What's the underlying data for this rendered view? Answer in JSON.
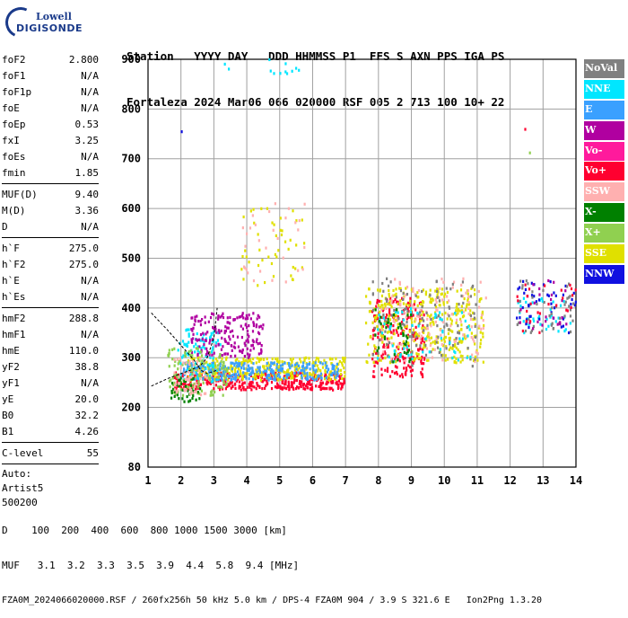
{
  "logo": {
    "line1": "Lowell",
    "line2": "DIGISONDE"
  },
  "header": {
    "line1": "Station   YYYY DAY   DDD HHMMSS P1  FFS S AXN PPS IGA PS",
    "line2": "Fortaleza 2024 Mar06 066 020000 RSF 005 2 713 100 10+ 22"
  },
  "params": [
    {
      "label": "foF2",
      "value": "2.800"
    },
    {
      "label": "foF1",
      "value": "N/A"
    },
    {
      "label": "foF1p",
      "value": "N/A"
    },
    {
      "label": "foE",
      "value": "N/A"
    },
    {
      "label": "foEp",
      "value": "0.53"
    },
    {
      "label": "fxI",
      "value": "3.25"
    },
    {
      "label": "foEs",
      "value": "N/A"
    },
    {
      "label": "fmin",
      "value": "1.85"
    },
    {
      "sep": true
    },
    {
      "label": "MUF(D)",
      "value": "9.40"
    },
    {
      "label": "M(D)",
      "value": "3.36"
    },
    {
      "label": "D",
      "value": "N/A"
    },
    {
      "sep": true
    },
    {
      "label": "h`F",
      "value": "275.0"
    },
    {
      "label": "h`F2",
      "value": "275.0"
    },
    {
      "label": "h`E",
      "value": "N/A"
    },
    {
      "label": "h`Es",
      "value": "N/A"
    },
    {
      "sep": true
    },
    {
      "label": "hmF2",
      "value": "288.8"
    },
    {
      "label": "hmF1",
      "value": "N/A"
    },
    {
      "label": "hmE",
      "value": "110.0"
    },
    {
      "label": "yF2",
      "value": "38.8"
    },
    {
      "label": "yF1",
      "value": "N/A"
    },
    {
      "label": "yE",
      "value": "20.0"
    },
    {
      "label": "B0",
      "value": "32.2"
    },
    {
      "label": "B1",
      "value": "4.26"
    },
    {
      "sep": true
    },
    {
      "label": "C-level",
      "value": "55"
    },
    {
      "sep": true
    },
    {
      "text": "Auto:"
    },
    {
      "text": "Artist5"
    },
    {
      "text": "500200"
    }
  ],
  "footer": {
    "line1": "D    100  200  400  600  800 1000 1500 3000 [km]",
    "line2": "MUF   3.1  3.2  3.3  3.5  3.9  4.4  5.8  9.4 [MHz]",
    "line3": "FZA0M_2024066020000.RSF / 260fx256h 50 kHz 5.0 km / DPS-4 FZA0M 904 / 3.9 S 321.6 E   Ion2Png 1.3.20"
  },
  "legend": [
    {
      "label": "NoVal",
      "color": "#808080"
    },
    {
      "label": "NNE",
      "color": "#00e6ff"
    },
    {
      "label": "E",
      "color": "#3aa0ff"
    },
    {
      "label": "W",
      "color": "#b000a0"
    },
    {
      "label": "Vo-",
      "color": "#ff1a9c"
    },
    {
      "label": "Vo+",
      "color": "#ff0030"
    },
    {
      "label": "SSW",
      "color": "#ffb0b0"
    },
    {
      "label": "X-",
      "color": "#008000"
    },
    {
      "label": "X+",
      "color": "#90d050"
    },
    {
      "label": "SSE",
      "color": "#e0e000"
    },
    {
      "label": "NNW",
      "color": "#1010e0"
    }
  ],
  "chart_data": {
    "type": "scatter",
    "title": "",
    "xlabel": "",
    "ylabel": "",
    "xlim": [
      1,
      14
    ],
    "ylim": [
      80,
      900
    ],
    "x_ticks": [
      1,
      2,
      3,
      4,
      5,
      6,
      7,
      8,
      9,
      10,
      11,
      12,
      13,
      14
    ],
    "y_ticks": [
      80,
      200,
      300,
      400,
      500,
      600,
      700,
      800,
      900
    ],
    "grid": true,
    "legend_position": "right",
    "clusters": [
      {
        "name": "Vo+",
        "x_range": [
          1.8,
          7.0
        ],
        "y_range": [
          235,
          270
        ],
        "count": 420
      },
      {
        "name": "SSE",
        "x_range": [
          2.2,
          7.0
        ],
        "y_range": [
          255,
          300
        ],
        "count": 380
      },
      {
        "name": "E",
        "x_range": [
          2.0,
          6.8
        ],
        "y_range": [
          255,
          290
        ],
        "count": 260
      },
      {
        "name": "NNE",
        "x_range": [
          1.9,
          3.2
        ],
        "y_range": [
          250,
          360
        ],
        "count": 90
      },
      {
        "name": "W",
        "x_range": [
          2.3,
          4.5
        ],
        "y_range": [
          300,
          390
        ],
        "count": 180
      },
      {
        "name": "X+",
        "x_range": [
          1.6,
          3.4
        ],
        "y_range": [
          220,
          320
        ],
        "count": 120
      },
      {
        "name": "X-",
        "x_range": [
          1.7,
          2.6
        ],
        "y_range": [
          210,
          260
        ],
        "count": 40
      },
      {
        "name": "SSW",
        "x_range": [
          1.8,
          2.8
        ],
        "y_range": [
          225,
          300
        ],
        "count": 50
      },
      {
        "name": "Vo+",
        "x_range": [
          7.8,
          9.4
        ],
        "y_range": [
          260,
          420
        ],
        "count": 230
      },
      {
        "name": "SSE",
        "x_range": [
          7.6,
          11.2
        ],
        "y_range": [
          290,
          440
        ],
        "count": 360
      },
      {
        "name": "SSW",
        "x_range": [
          8.0,
          11.3
        ],
        "y_range": [
          290,
          460
        ],
        "count": 120
      },
      {
        "name": "NoVal",
        "x_range": [
          7.8,
          11.0
        ],
        "y_range": [
          280,
          460
        ],
        "count": 120
      },
      {
        "name": "NNE",
        "x_range": [
          7.9,
          10.8
        ],
        "y_range": [
          290,
          400
        ],
        "count": 60
      },
      {
        "name": "X-",
        "x_range": [
          7.9,
          9.0
        ],
        "y_range": [
          280,
          400
        ],
        "count": 40
      },
      {
        "name": "SSE",
        "x_range": [
          3.8,
          5.8
        ],
        "y_range": [
          440,
          600
        ],
        "count": 45
      },
      {
        "name": "SSW",
        "x_range": [
          3.8,
          5.9
        ],
        "y_range": [
          450,
          610
        ],
        "count": 30
      },
      {
        "name": "NNE",
        "x_range": [
          3.0,
          5.8
        ],
        "y_range": [
          870,
          900
        ],
        "count": 12
      },
      {
        "name": "NNE",
        "x_range": [
          12.2,
          14.0
        ],
        "y_range": [
          350,
          420
        ],
        "count": 40
      },
      {
        "name": "NNW",
        "x_range": [
          12.2,
          14.0
        ],
        "y_range": [
          350,
          460
        ],
        "count": 45
      },
      {
        "name": "NoVal",
        "x_range": [
          12.2,
          14.0
        ],
        "y_range": [
          350,
          460
        ],
        "count": 45
      },
      {
        "name": "W",
        "x_range": [
          12.2,
          14.0
        ],
        "y_range": [
          350,
          460
        ],
        "count": 25
      },
      {
        "name": "Vo+",
        "x_range": [
          12.2,
          14.0
        ],
        "y_range": [
          350,
          460
        ],
        "count": 25
      },
      {
        "name": "X+",
        "x_range": [
          12.4,
          12.6
        ],
        "y_range": [
          710,
          720
        ],
        "count": 1
      },
      {
        "name": "Vo+",
        "x_range": [
          12.4,
          12.6
        ],
        "y_range": [
          755,
          765
        ],
        "count": 1
      },
      {
        "name": "NNW",
        "x_range": [
          2.0,
          2.1
        ],
        "y_range": [
          750,
          760
        ],
        "count": 1
      }
    ],
    "profile_curve": [
      [
        1.1,
        390
      ],
      [
        1.6,
        355
      ],
      [
        2.0,
        325
      ],
      [
        2.4,
        295
      ],
      [
        2.6,
        275
      ],
      [
        2.8,
        268
      ],
      [
        3.1,
        275
      ]
    ],
    "asymptote_curve": [
      [
        1.1,
        243
      ],
      [
        1.6,
        258
      ],
      [
        2.0,
        268
      ],
      [
        2.3,
        275
      ],
      [
        2.6,
        285
      ],
      [
        2.8,
        300
      ],
      [
        3.0,
        340
      ],
      [
        3.1,
        400
      ]
    ]
  }
}
